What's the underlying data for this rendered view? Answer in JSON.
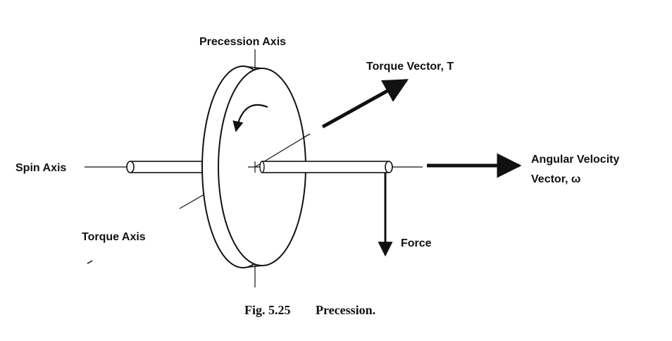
{
  "diagram": {
    "labels": {
      "precession_axis": "Precession Axis",
      "torque_vector": "Torque Vector, T",
      "spin_axis": "Spin Axis",
      "angular_velocity_line1": "Angular Velocity",
      "angular_velocity_line2": "Vector, ω",
      "torque_axis": "Torque Axis",
      "force": "Force"
    },
    "caption": {
      "number": "Fig. 5.25",
      "title": "Precession."
    }
  }
}
